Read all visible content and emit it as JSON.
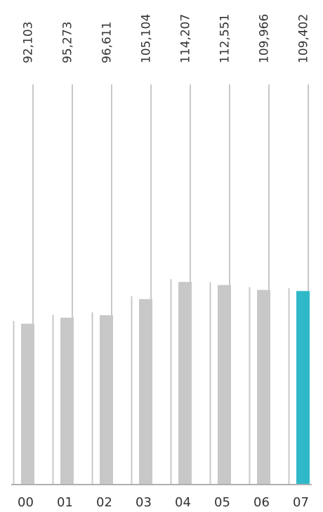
{
  "chart_data": {
    "type": "bar",
    "categories": [
      "00",
      "01",
      "02",
      "03",
      "04",
      "05",
      "06",
      "07"
    ],
    "values": [
      92103,
      95273,
      96611,
      105104,
      114207,
      112551,
      109966,
      109402
    ],
    "value_labels": [
      "92,103",
      "95,273",
      "96,611",
      "105,104",
      "114,207",
      "112,551",
      "109,966",
      "109,402"
    ],
    "highlight_index": 7,
    "colors": {
      "bar": "#c8c8c8",
      "highlight": "#2fb9c8",
      "guide": "#c8c8c8",
      "axis": "#b0b0b0"
    },
    "title": "",
    "xlabel": "",
    "ylabel": "",
    "grid": false,
    "legend": "none"
  }
}
